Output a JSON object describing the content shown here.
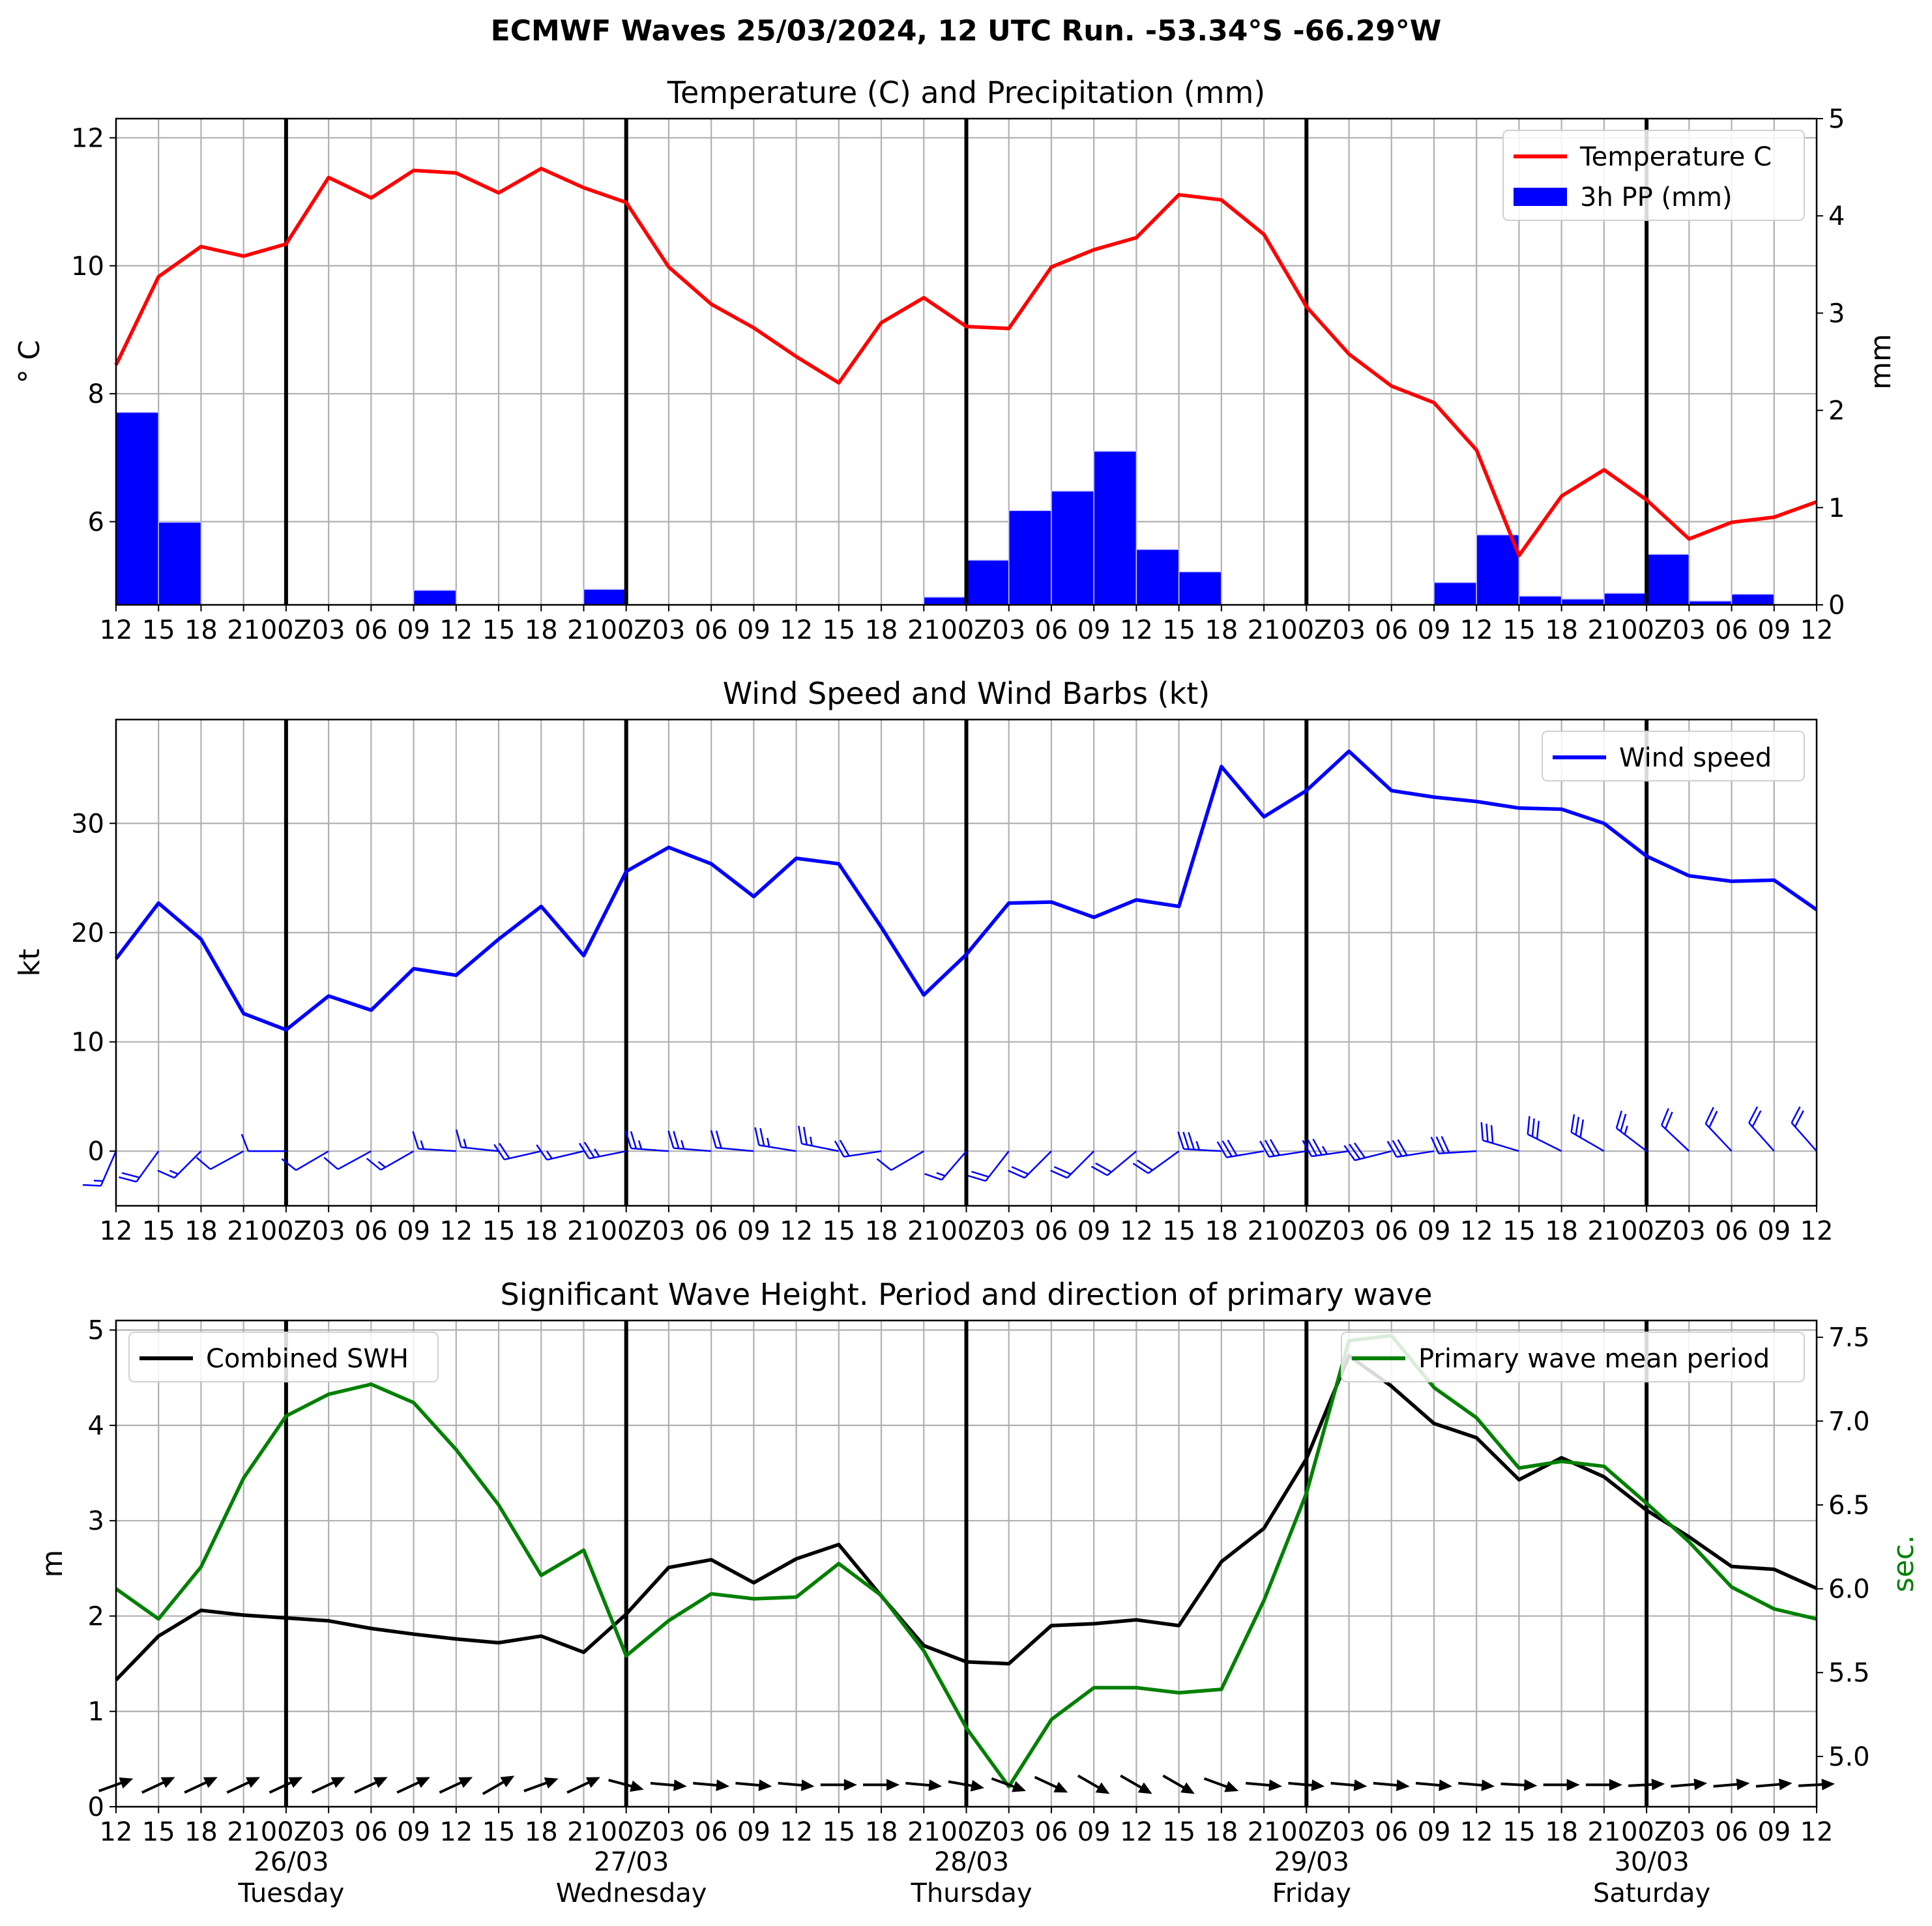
{
  "suptitle": "ECMWF Waves 25/03/2024, 12 UTC Run. -53.34°S -66.29°W",
  "x_tick_labels": [
    "12",
    "15",
    "18",
    "21",
    "00Z",
    "03",
    "06",
    "09",
    "12",
    "15",
    "18",
    "21",
    "00Z",
    "03",
    "06",
    "09",
    "12",
    "15",
    "18",
    "21",
    "00Z",
    "03",
    "06",
    "09",
    "12",
    "15",
    "18",
    "21",
    "00Z",
    "03",
    "06",
    "09",
    "12",
    "15",
    "18",
    "21",
    "00Z",
    "03",
    "06",
    "09",
    "12"
  ],
  "day_labels": [
    {
      "x": 4,
      "date": "26/03",
      "day": "Tuesday"
    },
    {
      "x": 12,
      "date": "27/03",
      "day": "Wednesday"
    },
    {
      "x": 20,
      "date": "28/03",
      "day": "Thursday"
    },
    {
      "x": 28,
      "date": "29/03",
      "day": "Friday"
    },
    {
      "x": 36,
      "date": "30/03",
      "day": "Saturday"
    }
  ],
  "chart_data": [
    {
      "type": "line",
      "title": "Temperature (C) and Precipitation (mm)",
      "ylabel": "° C",
      "ylabel2": "mm",
      "ylim": [
        4.7,
        12.3
      ],
      "y_ticks": [
        6,
        8,
        10,
        12
      ],
      "ylim2": [
        0,
        5
      ],
      "y2_ticks": [
        0,
        1,
        2,
        3,
        4,
        5
      ],
      "grid": true,
      "legend": "top-right",
      "series": [
        {
          "name": "Temperature C",
          "color": "#ff0000",
          "type": "line",
          "values": [
            8.45,
            9.83,
            10.3,
            10.15,
            10.34,
            11.38,
            11.06,
            11.49,
            11.45,
            11.14,
            11.52,
            11.22,
            10.99,
            9.98,
            9.4,
            9.03,
            8.58,
            8.17,
            9.11,
            9.5,
            9.05,
            9.02,
            9.98,
            10.25,
            10.44,
            11.11,
            11.03,
            10.49,
            9.36,
            8.62,
            8.12,
            7.86,
            7.12,
            5.47,
            6.4,
            6.81,
            6.34,
            5.73,
            5.99,
            6.07,
            6.31
          ]
        },
        {
          "name": "3h PP (mm)",
          "color": "#0000ff",
          "type": "bar",
          "values": [
            1.98,
            0.85,
            0,
            0,
            0,
            0,
            0,
            0.15,
            0,
            0,
            0,
            0.16,
            0,
            0,
            0,
            0,
            0,
            0,
            0,
            0.08,
            0.46,
            0.97,
            1.17,
            1.58,
            0.57,
            0.34,
            0,
            0,
            0,
            0,
            0,
            0.23,
            0.72,
            0.09,
            0.06,
            0.12,
            0.52,
            0.04,
            0.11,
            0,
            0
          ]
        }
      ]
    },
    {
      "type": "line",
      "title": "Wind Speed and Wind Barbs (kt)",
      "ylabel": "kt",
      "ylim": [
        -5,
        39.5
      ],
      "y_ticks": [
        0,
        10,
        20,
        30
      ],
      "grid": true,
      "legend": "top-right",
      "series": [
        {
          "name": "Wind speed",
          "color": "#0000ff",
          "values": [
            17.6,
            22.7,
            19.4,
            12.6,
            11.1,
            14.2,
            12.9,
            16.7,
            16.1,
            19.4,
            22.4,
            17.9,
            25.6,
            27.8,
            26.3,
            23.3,
            26.8,
            26.3,
            20.5,
            14.3,
            18.0,
            22.7,
            22.8,
            21.4,
            23.0,
            22.4,
            35.2,
            30.6,
            33.0,
            36.6,
            33.0,
            32.4,
            32.0,
            31.4,
            31.3,
            30.0,
            27.0,
            25.2,
            24.7,
            24.8,
            22.1
          ]
        }
      ],
      "barbs": {
        "color": "#0000ff",
        "y": 0,
        "u": [
          -7,
          -13,
          -14,
          -11,
          -11,
          -12,
          -11,
          -14,
          -16,
          -19,
          -22,
          -17,
          -25,
          -27,
          -25,
          -22,
          -25,
          -25,
          -20,
          -12,
          -12,
          -14,
          -16,
          -15,
          -18,
          -18,
          -35,
          -30,
          -33,
          -36,
          -32,
          -32,
          -32,
          -30,
          -28,
          -26,
          -21,
          -18,
          -17,
          -16,
          -15
        ],
        "v": [
          -16,
          -18,
          -14,
          -6,
          0,
          -7,
          -6,
          -8,
          1,
          2,
          -5,
          -4,
          -5,
          2,
          2,
          2,
          4,
          5,
          -3,
          -7,
          -14,
          -18,
          -16,
          -15,
          -15,
          -13,
          2,
          -5,
          -5,
          -5,
          -8,
          -5,
          -2,
          9,
          14,
          15,
          16,
          17,
          18,
          18,
          17
        ]
      }
    },
    {
      "type": "line",
      "title": "Significant Wave Height. Period and direction of primary wave",
      "ylabel": "m",
      "ylabel2": "sec.",
      "ylim": [
        0,
        5.1
      ],
      "y_ticks": [
        0,
        1,
        2,
        3,
        4,
        5
      ],
      "ylim2": [
        4.7,
        7.6
      ],
      "y2_ticks": [
        5.0,
        5.5,
        6.0,
        6.5,
        7.0,
        7.5
      ],
      "grid": true,
      "legend": [
        "top-left",
        "top-right"
      ],
      "series": [
        {
          "name": "Combined SWH",
          "color": "#000000",
          "axis": "left",
          "values": [
            1.33,
            1.79,
            2.06,
            2.01,
            1.98,
            1.95,
            1.87,
            1.81,
            1.76,
            1.72,
            1.79,
            1.62,
            2.02,
            2.51,
            2.59,
            2.35,
            2.6,
            2.75,
            2.21,
            1.69,
            1.52,
            1.5,
            1.9,
            1.92,
            1.96,
            1.9,
            2.57,
            2.92,
            3.65,
            4.73,
            4.41,
            4.02,
            3.87,
            3.43,
            3.66,
            3.46,
            3.11,
            2.83,
            2.52,
            2.49,
            2.29
          ]
        },
        {
          "name": "Primary wave mean period",
          "color": "#008000",
          "axis": "right",
          "values": [
            6.0,
            5.82,
            6.13,
            6.66,
            7.03,
            7.16,
            7.22,
            7.11,
            6.83,
            6.5,
            6.08,
            6.23,
            5.6,
            5.81,
            5.97,
            5.94,
            5.95,
            6.15,
            5.96,
            5.63,
            5.17,
            4.82,
            5.22,
            5.41,
            5.41,
            5.38,
            5.4,
            5.93,
            6.57,
            7.48,
            7.51,
            7.2,
            7.02,
            6.72,
            6.76,
            6.73,
            6.51,
            6.28,
            6.01,
            5.88,
            5.82
          ]
        }
      ],
      "arrows": {
        "color": "#000000",
        "y": 0.23,
        "angle_deg": [
          -20,
          -25,
          -25,
          -25,
          -25,
          -25,
          -25,
          -25,
          -25,
          -30,
          -20,
          -25,
          15,
          5,
          5,
          5,
          5,
          0,
          0,
          5,
          10,
          20,
          25,
          30,
          30,
          30,
          20,
          5,
          5,
          5,
          5,
          5,
          5,
          3,
          0,
          0,
          -3,
          -5,
          -5,
          -5,
          -3
        ]
      }
    }
  ]
}
